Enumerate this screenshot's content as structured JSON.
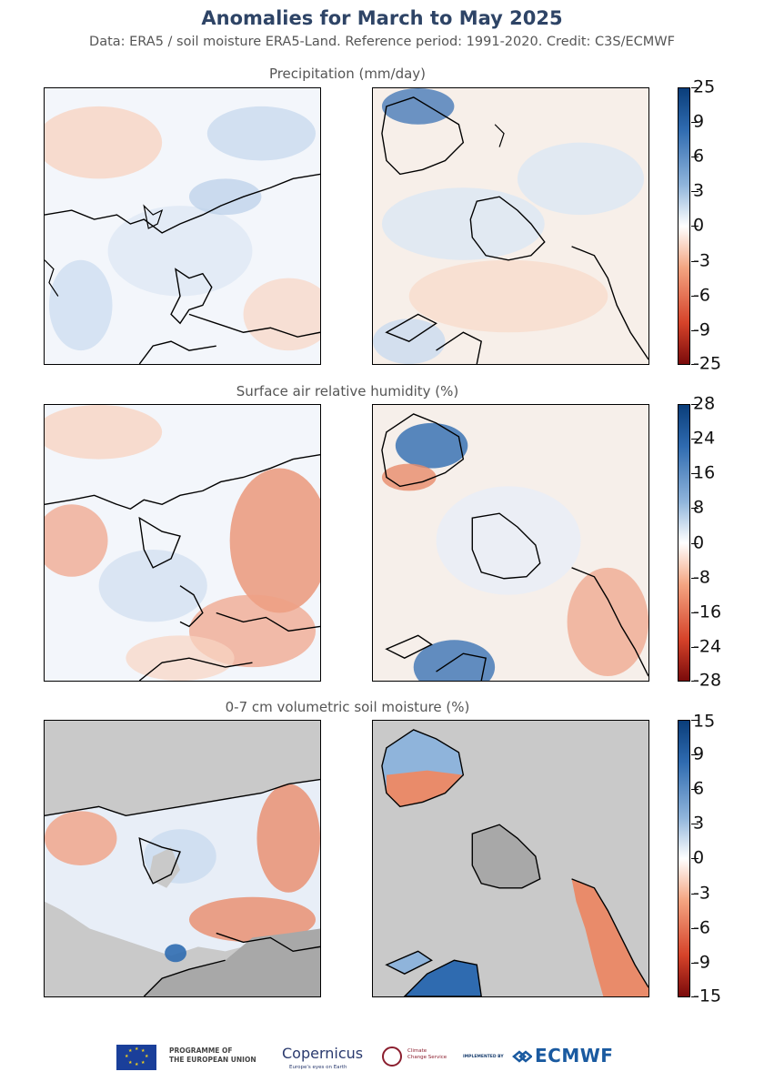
{
  "header": {
    "title": "Anomalies for March to May 2025",
    "subtitle": "Data: ERA5 / soil moisture ERA5-Land.  Reference period: 1991-2020.  Credit: C3S/ECMWF"
  },
  "panels": [
    {
      "title": "Precipitation (mm/day)",
      "ticks": [
        "25",
        "9",
        "6",
        "3",
        "0",
        "-3",
        "-6",
        "-9",
        "-25"
      ]
    },
    {
      "title": "Surface air relative humidity (%)",
      "ticks": [
        "28",
        "24",
        "16",
        "8",
        "0",
        "-8",
        "-16",
        "-24",
        "-28"
      ]
    },
    {
      "title": "0-7 cm volumetric soil moisture (%)",
      "ticks": [
        "15",
        "9",
        "6",
        "3",
        "0",
        "-3",
        "-6",
        "-9",
        "-15"
      ]
    }
  ],
  "footer": {
    "eu_programme": "PROGRAMME OF\nTHE EUROPEAN UNION",
    "copernicus": "Copernicus",
    "copernicus_tagline": "Europe's eyes on Earth",
    "ccs": "Climate\nChange Service",
    "implemented_by": "IMPLEMENTED BY",
    "ecmwf": "ECMWF"
  },
  "colors": {
    "positive_max": "#0a3d7a",
    "positive_mid": "#8fb4db",
    "neutral": "#ffffff",
    "negative_mid": "#f4a582",
    "negative_max": "#7a0b0b",
    "no_data": "#c9c9c9"
  }
}
